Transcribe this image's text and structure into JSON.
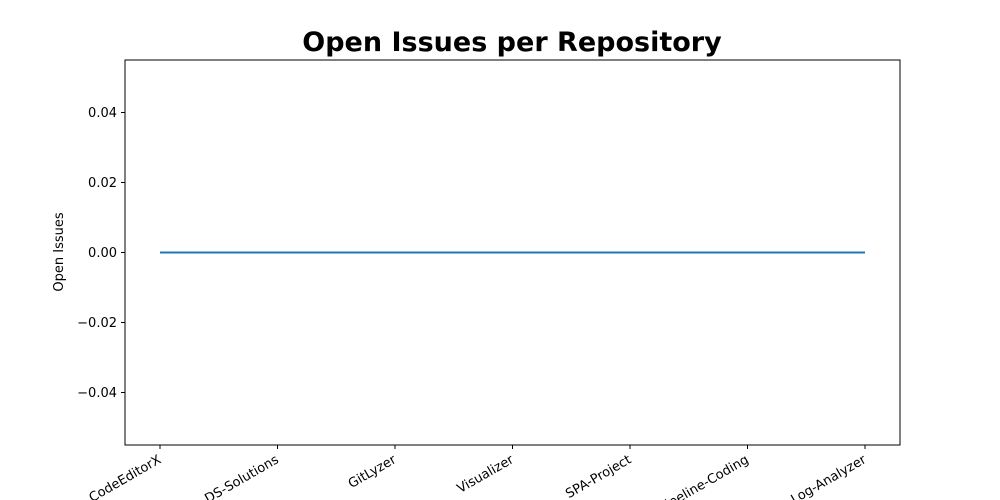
{
  "chart_data": {
    "type": "line",
    "title": "Open Issues per Repository",
    "xlabel": "",
    "ylabel": "Open Issues",
    "categories": [
      "CodeEditorX",
      "DS-Solutions",
      "GitLyzer",
      "Visualizer",
      "SPA-Project",
      "Pipeline-Coding",
      "Log-Analyzer"
    ],
    "series": [
      {
        "values": [
          0,
          0,
          0,
          0,
          0,
          0,
          0
        ],
        "color": "#1f77b4"
      }
    ],
    "ylim": [
      -0.055,
      0.055
    ],
    "yticks": [
      -0.04,
      -0.02,
      0.0,
      0.02,
      0.04
    ],
    "ytick_labels": [
      "−0.04",
      "−0.02",
      "0.00",
      "0.02",
      "0.04"
    ],
    "grid": false,
    "legend": "none"
  }
}
